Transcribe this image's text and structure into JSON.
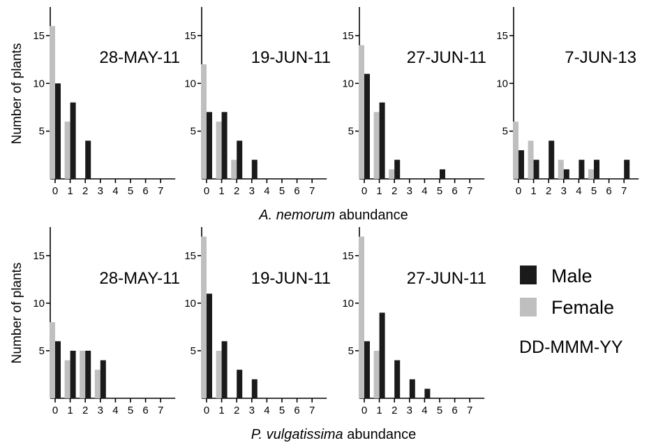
{
  "figure": {
    "ylabel": "Number of plants",
    "row1_xlabel": {
      "species": "A. nemorum",
      "suffix": " abundance"
    },
    "row2_xlabel": {
      "species": "P. vulgatissima",
      "suffix": " abundance"
    },
    "legend": {
      "male_label": "Male",
      "female_label": "Female",
      "date_format_label": "DD-MMM-YY"
    },
    "colors": {
      "male": "#1a1a1a",
      "female": "#bfbfbf"
    }
  },
  "chart_data": [
    {
      "type": "bar",
      "title": "28-MAY-11",
      "categories": [
        "0",
        "1",
        "2",
        "3",
        "4",
        "5",
        "6",
        "7"
      ],
      "ylim": [
        0,
        18
      ],
      "yticks": [
        5,
        10,
        15
      ],
      "series": [
        {
          "name": "Male",
          "values": [
            10,
            8,
            4,
            0,
            0,
            0,
            0,
            0
          ]
        },
        {
          "name": "Female",
          "values": [
            16,
            6,
            0,
            0,
            0,
            0,
            0,
            0
          ]
        }
      ]
    },
    {
      "type": "bar",
      "title": "19-JUN-11",
      "categories": [
        "0",
        "1",
        "2",
        "3",
        "4",
        "5",
        "6",
        "7"
      ],
      "ylim": [
        0,
        18
      ],
      "yticks": [
        5,
        10,
        15
      ],
      "series": [
        {
          "name": "Male",
          "values": [
            7,
            7,
            4,
            2,
            0,
            0,
            0,
            0
          ]
        },
        {
          "name": "Female",
          "values": [
            12,
            6,
            2,
            0,
            0,
            0,
            0,
            0
          ]
        }
      ]
    },
    {
      "type": "bar",
      "title": "27-JUN-11",
      "categories": [
        "0",
        "1",
        "2",
        "3",
        "4",
        "5",
        "6",
        "7"
      ],
      "ylim": [
        0,
        18
      ],
      "yticks": [
        5,
        10,
        15
      ],
      "series": [
        {
          "name": "Male",
          "values": [
            11,
            8,
            2,
            0,
            0,
            1,
            0,
            0
          ]
        },
        {
          "name": "Female",
          "values": [
            14,
            7,
            1,
            0,
            0,
            0,
            0,
            0
          ]
        }
      ]
    },
    {
      "type": "bar",
      "title": "7-JUN-13",
      "categories": [
        "0",
        "1",
        "2",
        "3",
        "4",
        "5",
        "6",
        "7"
      ],
      "ylim": [
        0,
        18
      ],
      "yticks": [
        5,
        10,
        15
      ],
      "series": [
        {
          "name": "Male",
          "values": [
            3,
            2,
            4,
            1,
            2,
            2,
            0,
            2
          ]
        },
        {
          "name": "Female",
          "values": [
            6,
            4,
            0,
            2,
            0,
            1,
            0,
            0
          ]
        }
      ]
    },
    {
      "type": "bar",
      "title": "28-MAY-11",
      "categories": [
        "0",
        "1",
        "2",
        "3",
        "4",
        "5",
        "6",
        "7"
      ],
      "ylim": [
        0,
        18
      ],
      "yticks": [
        5,
        10,
        15
      ],
      "series": [
        {
          "name": "Male",
          "values": [
            6,
            5,
            5,
            4,
            0,
            0,
            0,
            0
          ]
        },
        {
          "name": "Female",
          "values": [
            8,
            4,
            5,
            3,
            0,
            0,
            0,
            0
          ]
        }
      ]
    },
    {
      "type": "bar",
      "title": "19-JUN-11",
      "categories": [
        "0",
        "1",
        "2",
        "3",
        "4",
        "5",
        "6",
        "7"
      ],
      "ylim": [
        0,
        18
      ],
      "yticks": [
        5,
        10,
        15
      ],
      "series": [
        {
          "name": "Male",
          "values": [
            11,
            6,
            3,
            2,
            0,
            0,
            0,
            0
          ]
        },
        {
          "name": "Female",
          "values": [
            17,
            5,
            0,
            0,
            0,
            0,
            0,
            0
          ]
        }
      ]
    },
    {
      "type": "bar",
      "title": "27-JUN-11",
      "categories": [
        "0",
        "1",
        "2",
        "3",
        "4",
        "5",
        "6",
        "7"
      ],
      "ylim": [
        0,
        18
      ],
      "yticks": [
        5,
        10,
        15
      ],
      "series": [
        {
          "name": "Male",
          "values": [
            6,
            9,
            4,
            2,
            1,
            0,
            0,
            0
          ]
        },
        {
          "name": "Female",
          "values": [
            17,
            5,
            0,
            0,
            0,
            0,
            0,
            0
          ]
        }
      ]
    }
  ]
}
